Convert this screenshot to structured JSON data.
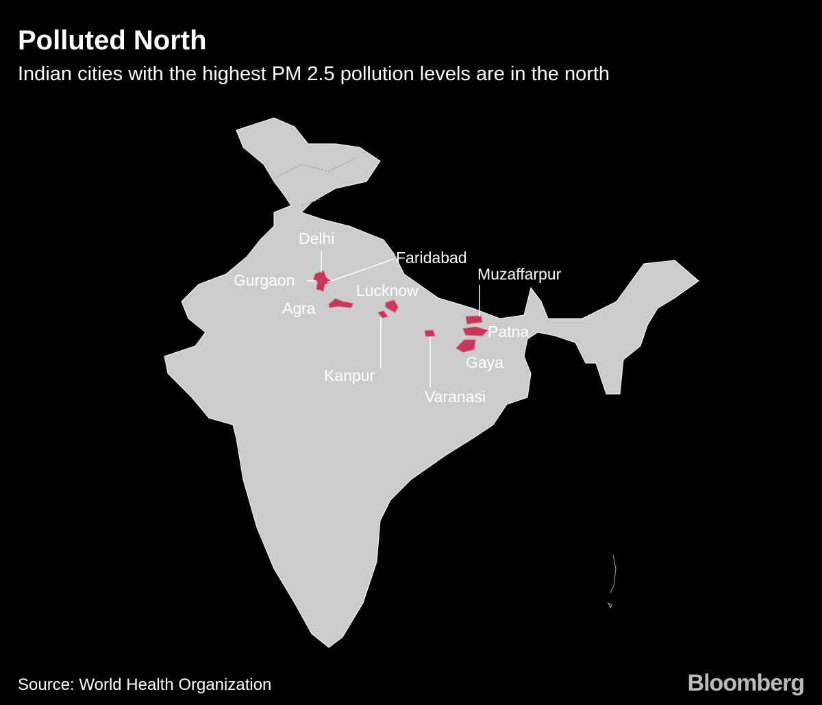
{
  "header": {
    "title": "Polluted North",
    "subtitle": "Indian cities with the highest PM 2.5 pollution levels are in the north"
  },
  "map": {
    "cities": [
      "Delhi",
      "Gurgaon",
      "Faridabad",
      "Agra",
      "Lucknow",
      "Kanpur",
      "Varanasi",
      "Muzaffarpur",
      "Patna",
      "Gaya"
    ]
  },
  "footer": {
    "source": "Source: World Health Organization",
    "logo": "Bloomberg"
  }
}
